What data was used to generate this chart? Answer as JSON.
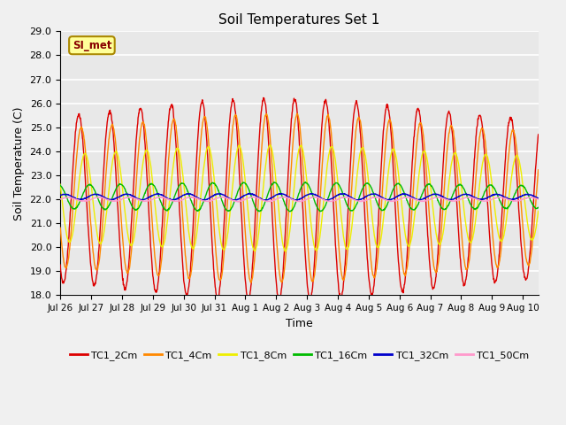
{
  "title": "Soil Temperatures Set 1",
  "xlabel": "Time",
  "ylabel": "Soil Temperature (C)",
  "ylim": [
    18.0,
    29.0
  ],
  "yticks": [
    18.0,
    19.0,
    20.0,
    21.0,
    22.0,
    23.0,
    24.0,
    25.0,
    26.0,
    27.0,
    28.0,
    29.0
  ],
  "xtick_labels": [
    "Jul 26",
    "Jul 27",
    "Jul 28",
    "Jul 29",
    "Jul 30",
    "Jul 31",
    "Aug 1",
    "Aug 2",
    "Aug 3",
    "Aug 4",
    "Aug 5",
    "Aug 6",
    "Aug 7",
    "Aug 8",
    "Aug 9",
    "Aug 10"
  ],
  "legend_labels": [
    "TC1_2Cm",
    "TC1_4Cm",
    "TC1_8Cm",
    "TC1_16Cm",
    "TC1_32Cm",
    "TC1_50Cm"
  ],
  "annotation_text": "SI_met",
  "background_color": "#e8e8e8",
  "grid_color": "#ffffff",
  "line_colors": [
    "#dd0000",
    "#ff8800",
    "#eeee00",
    "#00bb00",
    "#0000cc",
    "#ff99cc"
  ],
  "n_days": 15.5,
  "points_per_day": 96,
  "mean_temps": [
    22.0,
    22.05,
    22.05,
    22.1,
    22.1,
    22.0
  ],
  "base_amplitudes": [
    4.2,
    3.5,
    2.2,
    0.6,
    0.13,
    0.09
  ],
  "phase_shifts_days": [
    0.0,
    0.08,
    0.2,
    0.35,
    0.55,
    0.65
  ],
  "figsize": [
    6.4,
    4.8
  ],
  "dpi": 100
}
